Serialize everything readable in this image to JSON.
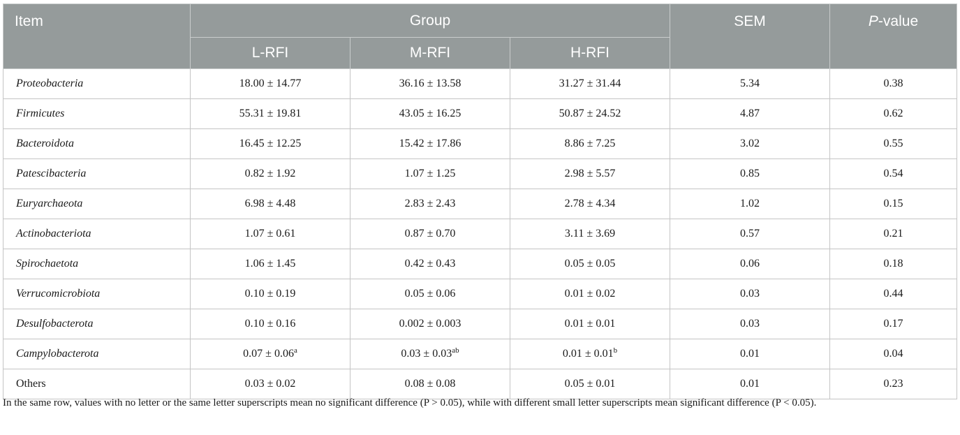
{
  "header": {
    "item": "Item",
    "group": "Group",
    "groups": [
      "L-RFI",
      "M-RFI",
      "H-RFI"
    ],
    "sem": "SEM",
    "p_italic": "P",
    "p_rest": "-value"
  },
  "rows": [
    {
      "item": "Proteobacteria",
      "italic": true,
      "l": "18.00 ± 14.77",
      "l_sup": "",
      "m": "36.16 ± 13.58",
      "m_sup": "",
      "h": "31.27 ± 31.44",
      "h_sup": "",
      "sem": "5.34",
      "p": "0.38"
    },
    {
      "item": "Firmicutes",
      "italic": true,
      "l": "55.31 ± 19.81",
      "l_sup": "",
      "m": "43.05 ± 16.25",
      "m_sup": "",
      "h": "50.87 ± 24.52",
      "h_sup": "",
      "sem": "4.87",
      "p": "0.62"
    },
    {
      "item": "Bacteroidota",
      "italic": true,
      "l": "16.45 ± 12.25",
      "l_sup": "",
      "m": "15.42 ± 17.86",
      "m_sup": "",
      "h": "8.86 ± 7.25",
      "h_sup": "",
      "sem": "3.02",
      "p": "0.55"
    },
    {
      "item": "Patescibacteria",
      "italic": true,
      "l": "0.82 ± 1.92",
      "l_sup": "",
      "m": "1.07 ± 1.25",
      "m_sup": "",
      "h": "2.98 ± 5.57",
      "h_sup": "",
      "sem": "0.85",
      "p": "0.54"
    },
    {
      "item": "Euryarchaeota",
      "italic": true,
      "l": "6.98 ± 4.48",
      "l_sup": "",
      "m": "2.83 ± 2.43",
      "m_sup": "",
      "h": "2.78 ± 4.34",
      "h_sup": "",
      "sem": "1.02",
      "p": "0.15"
    },
    {
      "item": "Actinobacteriota",
      "italic": true,
      "l": "1.07 ± 0.61",
      "l_sup": "",
      "m": "0.87 ± 0.70",
      "m_sup": "",
      "h": "3.11 ± 3.69",
      "h_sup": "",
      "sem": "0.57",
      "p": "0.21"
    },
    {
      "item": "Spirochaetota",
      "italic": true,
      "l": "1.06 ± 1.45",
      "l_sup": "",
      "m": "0.42 ± 0.43",
      "m_sup": "",
      "h": "0.05 ± 0.05",
      "h_sup": "",
      "sem": "0.06",
      "p": "0.18"
    },
    {
      "item": "Verrucomicrobiota",
      "italic": true,
      "l": "0.10 ± 0.19",
      "l_sup": "",
      "m": "0.05 ± 0.06",
      "m_sup": "",
      "h": "0.01 ± 0.02",
      "h_sup": "",
      "sem": "0.03",
      "p": "0.44"
    },
    {
      "item": "Desulfobacterota",
      "italic": true,
      "l": "0.10 ± 0.16",
      "l_sup": "",
      "m": "0.002 ± 0.003",
      "m_sup": "",
      "h": "0.01 ± 0.01",
      "h_sup": "",
      "sem": "0.03",
      "p": "0.17"
    },
    {
      "item": "Campylobacterota",
      "italic": true,
      "l": "0.07 ± 0.06",
      "l_sup": "a",
      "m": "0.03 ± 0.03",
      "m_sup": "ab",
      "h": "0.01 ± 0.01",
      "h_sup": "b",
      "sem": "0.01",
      "p": "0.04"
    },
    {
      "item": "Others",
      "italic": false,
      "l": "0.03 ± 0.02",
      "l_sup": "",
      "m": "0.08 ± 0.08",
      "m_sup": "",
      "h": "0.05 ± 0.01",
      "h_sup": "",
      "sem": "0.01",
      "p": "0.23"
    }
  ],
  "footnote": "In the same row, values with no letter or the same letter superscripts mean no significant difference (P > 0.05), while with different small letter superscripts mean significant difference (P < 0.05)."
}
